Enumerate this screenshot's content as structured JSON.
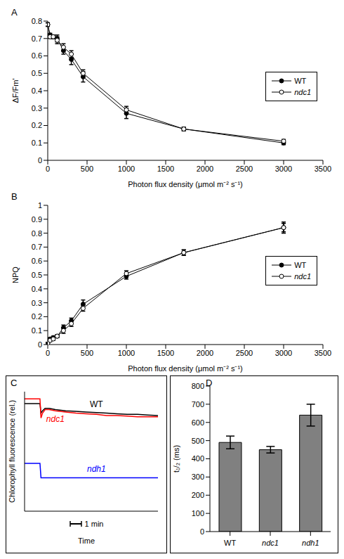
{
  "chart_data": [
    {
      "type": "line",
      "title": "A",
      "x_label": "Photon flux density  (μmol m⁻² s⁻¹)",
      "y_label": "ΔF/Fm'",
      "x": [
        0,
        30,
        70,
        120,
        200,
        300,
        450,
        1000,
        1730,
        3000
      ],
      "xlim": [
        0,
        3500
      ],
      "xticks": [
        0,
        500,
        1000,
        1500,
        2000,
        2500,
        3000,
        3500
      ],
      "ylim": [
        0,
        0.8
      ],
      "yticks": [
        0,
        0.1,
        0.2,
        0.3,
        0.4,
        0.5,
        0.6,
        0.7,
        0.8
      ],
      "legend": "right",
      "series": [
        {
          "name": "WT",
          "color": "#000000",
          "marker": "circle",
          "values": [
            0.78,
            0.72,
            0.71,
            0.7,
            0.63,
            0.58,
            0.48,
            0.27,
            0.18,
            0.1
          ],
          "errors": [
            0.01,
            0.01,
            0.01,
            0.02,
            0.02,
            0.03,
            0.03,
            0.03,
            0.01,
            0.01
          ]
        },
        {
          "name": "ndc1",
          "color": "#000000",
          "marker": "open_circle",
          "values": [
            0.78,
            0.71,
            0.71,
            0.69,
            0.65,
            0.61,
            0.5,
            0.29,
            0.18,
            0.11
          ],
          "errors": [
            0.01,
            0.01,
            0.01,
            0.02,
            0.02,
            0.02,
            0.02,
            0.02,
            0.01,
            0.01
          ]
        }
      ]
    },
    {
      "type": "line",
      "title": "B",
      "x_label": "Photon flux density  (μmol m⁻² s⁻¹)",
      "y_label": "NPQ",
      "x": [
        0,
        30,
        70,
        120,
        200,
        300,
        450,
        1000,
        1730,
        3000
      ],
      "xlim": [
        0,
        3500
      ],
      "xticks": [
        0,
        500,
        1000,
        1500,
        2000,
        2500,
        3000,
        3500
      ],
      "ylim": [
        0,
        1
      ],
      "yticks": [
        0,
        0.1,
        0.2,
        0.3,
        0.4,
        0.5,
        0.6,
        0.7,
        0.8,
        0.9,
        1
      ],
      "legend": "right",
      "series": [
        {
          "name": "WT",
          "color": "#000000",
          "marker": "circle",
          "values": [
            0.01,
            0.04,
            0.05,
            0.06,
            0.12,
            0.17,
            0.29,
            0.49,
            0.66,
            0.84
          ],
          "errors": [
            0.005,
            0.01,
            0.01,
            0.01,
            0.02,
            0.02,
            0.03,
            0.02,
            0.02,
            0.04
          ]
        },
        {
          "name": "ndc1",
          "color": "#000000",
          "marker": "open_circle",
          "values": [
            0.01,
            0.03,
            0.04,
            0.06,
            0.1,
            0.15,
            0.26,
            0.51,
            0.66,
            0.84
          ],
          "errors": [
            0.005,
            0.01,
            0.01,
            0.01,
            0.02,
            0.02,
            0.02,
            0.02,
            0.02,
            0.03
          ]
        }
      ]
    },
    {
      "type": "line",
      "title": "C",
      "x_label": "Time",
      "y_label": "Chlorophyll fluorescence (rel.)",
      "annotations": [
        "1 min"
      ],
      "tick_labels": false,
      "data_labels": false,
      "x": [
        0,
        1.5,
        1.6,
        1.75,
        2.0,
        2.4,
        3.0,
        4,
        5,
        6,
        7,
        8,
        9,
        10,
        11,
        12,
        13
      ],
      "xlim": [
        0,
        13
      ],
      "ylim": [
        0,
        1
      ],
      "series": [
        {
          "name": "WT",
          "color": "#000000",
          "values": [
            0.9,
            0.9,
            0.82,
            0.84,
            0.86,
            0.86,
            0.85,
            0.84,
            0.835,
            0.83,
            0.825,
            0.82,
            0.815,
            0.81,
            0.81,
            0.805,
            0.8
          ]
        },
        {
          "name": "ndc1",
          "color": "#ff0000",
          "values": [
            0.94,
            0.94,
            0.78,
            0.82,
            0.85,
            0.85,
            0.84,
            0.83,
            0.82,
            0.815,
            0.81,
            0.8,
            0.8,
            0.795,
            0.79,
            0.79,
            0.79
          ]
        },
        {
          "name": "ndh1",
          "color": "#0000ff",
          "values": [
            0.4,
            0.4,
            0.28,
            0.28,
            0.28,
            0.28,
            0.28,
            0.28,
            0.28,
            0.28,
            0.28,
            0.28,
            0.28,
            0.28,
            0.28,
            0.28,
            0.28
          ]
        }
      ]
    },
    {
      "type": "bar",
      "title": "D",
      "y_label": "t₁/₂  (ms)",
      "categories": [
        "WT",
        "ndc1",
        "ndh1"
      ],
      "values": [
        490,
        450,
        640
      ],
      "errors": [
        35,
        18,
        60
      ],
      "color": "#808080",
      "ylim": [
        0,
        800
      ],
      "yticks": [
        0,
        100,
        200,
        300,
        400,
        500,
        600,
        700,
        800
      ]
    }
  ]
}
